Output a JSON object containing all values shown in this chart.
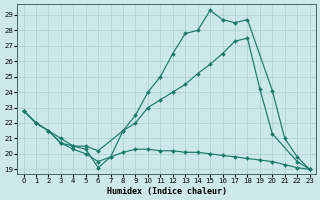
{
  "xlabel": "Humidex (Indice chaleur)",
  "bg_color": "#cce8e8",
  "line_color": "#1a7a6a",
  "xlim": [
    -0.5,
    23.5
  ],
  "ylim": [
    18.7,
    29.7
  ],
  "yticks": [
    19,
    20,
    21,
    22,
    23,
    24,
    25,
    26,
    27,
    28,
    29
  ],
  "xticks": [
    0,
    1,
    2,
    3,
    4,
    5,
    6,
    7,
    8,
    9,
    10,
    11,
    12,
    13,
    14,
    15,
    16,
    17,
    18,
    19,
    20,
    21,
    22,
    23
  ],
  "curve1_x": [
    0,
    1,
    2,
    3,
    4,
    5,
    6,
    7,
    8,
    9,
    10,
    11,
    12,
    13,
    14,
    15,
    16,
    17,
    18,
    20,
    21,
    22,
    23
  ],
  "curve1_y": [
    22.8,
    22.0,
    21.5,
    20.7,
    20.5,
    20.3,
    19.1,
    19.8,
    21.5,
    22.5,
    24.0,
    25.0,
    26.5,
    27.8,
    28.0,
    29.3,
    28.7,
    28.5,
    28.7,
    24.1,
    21.0,
    19.8,
    19.0
  ],
  "curve2_x": [
    0,
    1,
    2,
    3,
    4,
    5,
    6,
    8,
    9,
    10,
    11,
    12,
    13,
    14,
    15,
    16,
    17,
    18,
    19,
    20,
    22,
    23
  ],
  "curve2_y": [
    22.8,
    22.0,
    21.5,
    21.0,
    20.5,
    20.5,
    20.2,
    21.5,
    22.0,
    23.0,
    23.5,
    24.0,
    24.5,
    25.2,
    25.8,
    26.5,
    27.3,
    27.5,
    24.2,
    21.3,
    19.5,
    19.0
  ],
  "curve3_x": [
    0,
    1,
    2,
    3,
    4,
    5,
    6,
    7,
    8,
    9,
    10,
    11,
    12,
    13,
    14,
    15,
    16,
    17,
    18,
    19,
    20,
    21,
    22,
    23
  ],
  "curve3_y": [
    22.8,
    22.0,
    21.5,
    20.7,
    20.3,
    20.0,
    19.5,
    19.8,
    20.1,
    20.3,
    20.3,
    20.2,
    20.2,
    20.1,
    20.1,
    20.0,
    19.9,
    19.8,
    19.7,
    19.6,
    19.5,
    19.3,
    19.1,
    19.0
  ]
}
